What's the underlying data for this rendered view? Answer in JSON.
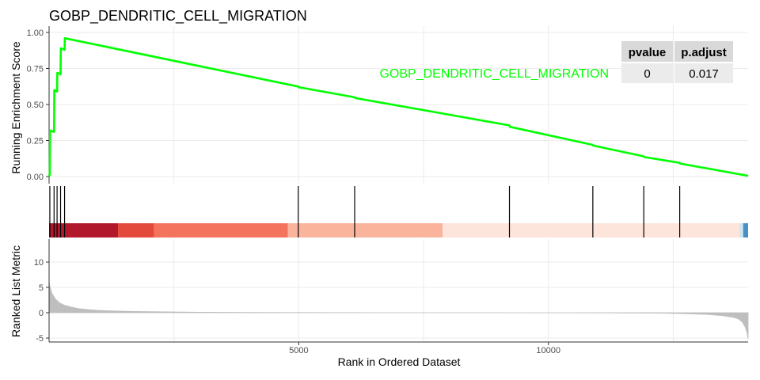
{
  "title": "GOBP_DENDRITIC_CELL_MIGRATION",
  "colors": {
    "curve": "#00ff00",
    "hits": "#000000",
    "grid": "#ebebeb",
    "metric_fill": "#bebebe",
    "table_header_bg": "#d9d9d9",
    "table_cell_bg": "#ebebeb"
  },
  "chart_data": [
    {
      "type": "line",
      "panel": "running-enrichment-score",
      "ylabel": "Running Enrichment Score",
      "xlim": [
        0,
        14000
      ],
      "ylim": [
        0,
        1
      ],
      "yticks": [
        "0.00",
        "0.25",
        "0.50",
        "0.75",
        "1.00"
      ],
      "yticks_values": [
        0,
        0.25,
        0.5,
        0.75,
        1.0
      ],
      "grid": true,
      "series": [
        {
          "name": "GOBP_DENDRITIC_CELL_MIGRATION",
          "x": [
            0,
            15,
            20,
            100,
            105,
            160,
            165,
            230,
            235,
            310,
            315,
            4990,
            5000,
            6120,
            6130,
            9220,
            9230,
            10890,
            10900,
            11910,
            11920,
            12630,
            12640,
            14000
          ],
          "y": [
            0,
            0.02,
            0.32,
            0.31,
            0.6,
            0.59,
            0.72,
            0.71,
            0.89,
            0.88,
            0.96,
            0.625,
            0.62,
            0.55,
            0.545,
            0.355,
            0.345,
            0.22,
            0.215,
            0.14,
            0.135,
            0.095,
            0.09,
            0.005
          ]
        }
      ],
      "stats_table": {
        "headers": [
          "pvalue",
          "p.adjust"
        ],
        "values": [
          "0",
          "0.017"
        ]
      }
    },
    {
      "type": "rug",
      "panel": "gene-hits",
      "hits": [
        15,
        100,
        160,
        230,
        310,
        4990,
        6120,
        9220,
        10890,
        11910,
        12630
      ],
      "color_bands": [
        {
          "from": 0,
          "to": 1380,
          "color": "#b2182b"
        },
        {
          "from": 1380,
          "to": 2100,
          "color": "#e34a3c"
        },
        {
          "from": 2100,
          "to": 4780,
          "color": "#f4735d"
        },
        {
          "from": 4780,
          "to": 7880,
          "color": "#fbb49c"
        },
        {
          "from": 7880,
          "to": 13820,
          "color": "#fde5db"
        },
        {
          "from": 13820,
          "to": 13900,
          "color": "#d1e5f0"
        },
        {
          "from": 13900,
          "to": 14000,
          "color": "#4a90c4"
        }
      ]
    },
    {
      "type": "area",
      "panel": "ranked-list-metric",
      "ylabel": "Ranked List Metric",
      "xlabel": "Rank in Ordered Dataset",
      "xlim": [
        0,
        14000
      ],
      "ylim": [
        -6,
        14
      ],
      "xticks": [
        "5000",
        "10000"
      ],
      "xticks_values": [
        5000,
        10000
      ],
      "yticks": [
        "-5",
        "0",
        "5",
        "10"
      ],
      "yticks_values": [
        -5,
        0,
        5,
        10
      ],
      "grid": true,
      "x": [
        0,
        20,
        60,
        120,
        200,
        300,
        450,
        600,
        800,
        1000,
        1300,
        1700,
        2200,
        3000,
        4000,
        5000,
        6000,
        7000,
        8000,
        9000,
        9800,
        10500,
        11500,
        12300,
        12800,
        13200,
        13500,
        13700,
        13800,
        13880,
        13940,
        13980,
        14000
      ],
      "values": [
        6.0,
        5.0,
        3.8,
        2.8,
        2.0,
        1.5,
        1.1,
        0.8,
        0.6,
        0.45,
        0.35,
        0.25,
        0.18,
        0.1,
        0.06,
        0.03,
        0.01,
        0.0,
        0.0,
        0.0,
        -0.01,
        -0.02,
        -0.05,
        -0.1,
        -0.2,
        -0.35,
        -0.6,
        -0.9,
        -1.2,
        -1.8,
        -2.8,
        -4.0,
        -5.2
      ]
    }
  ]
}
